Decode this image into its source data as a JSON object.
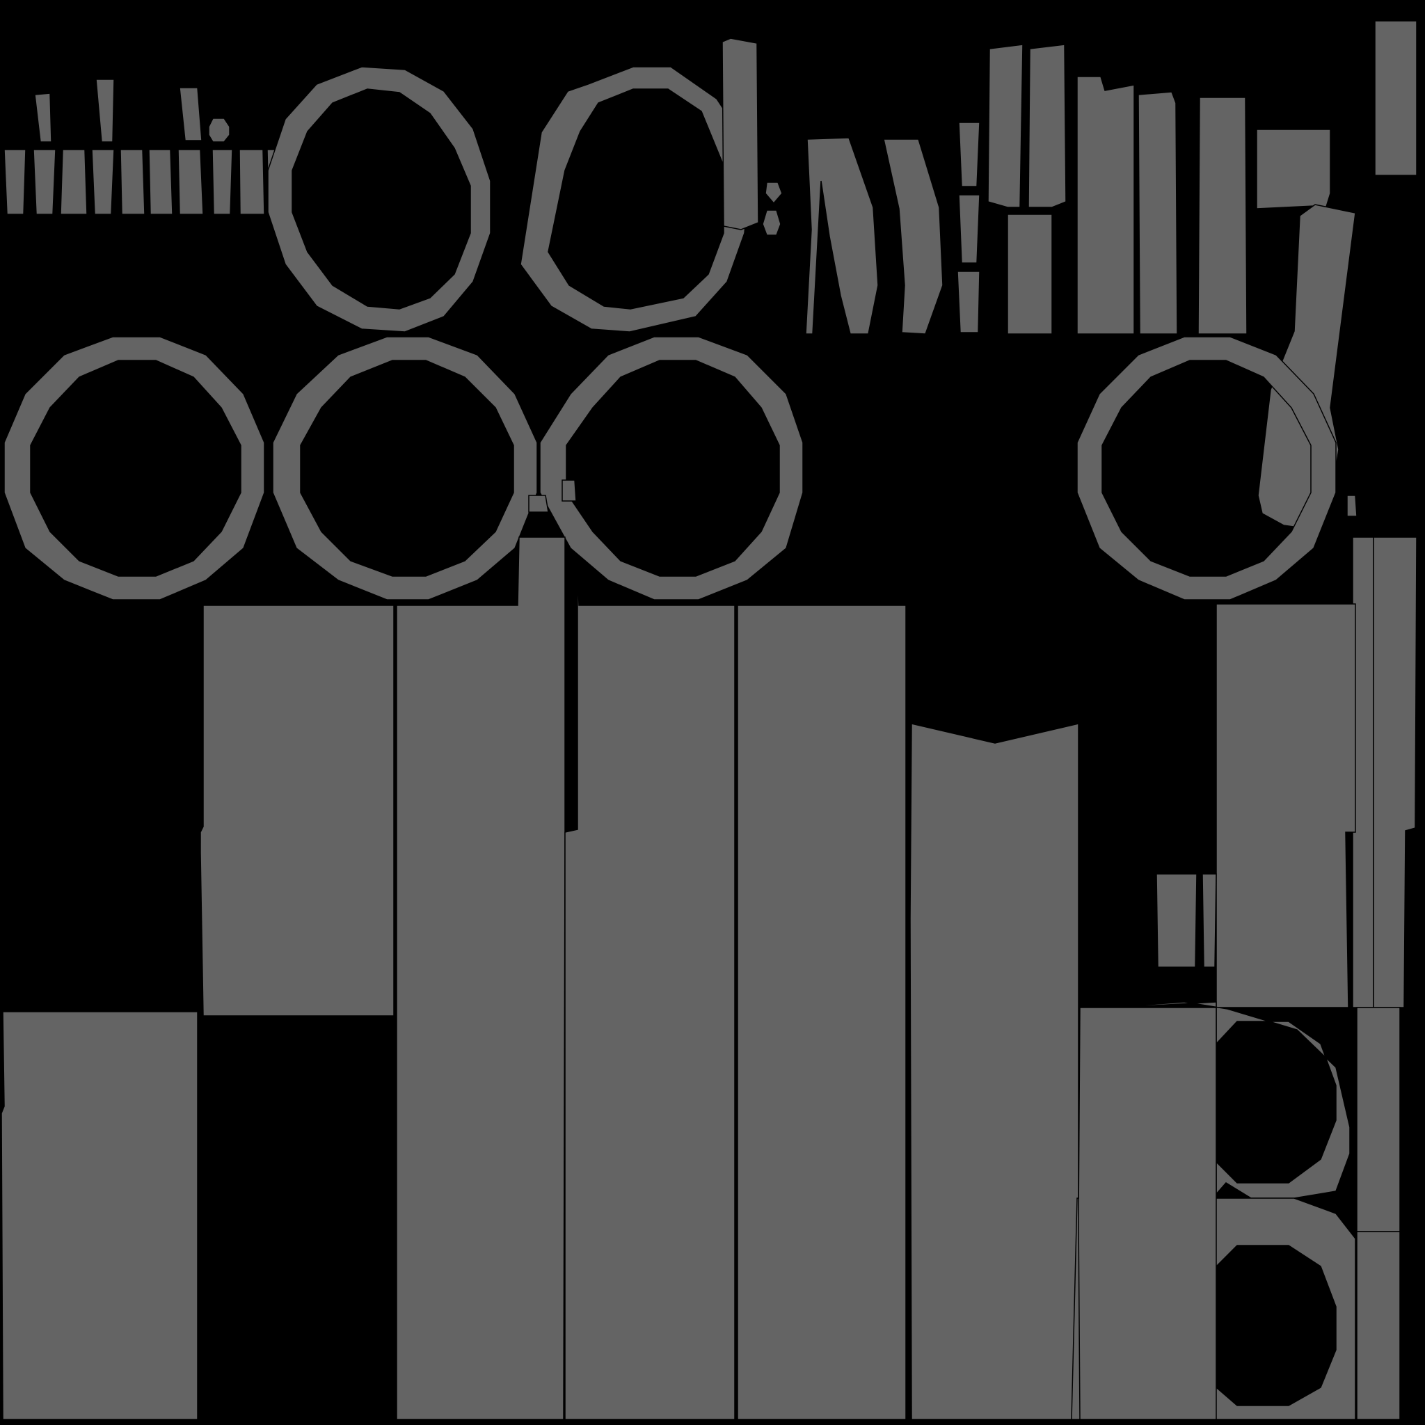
{
  "texture": {
    "background_color": "#000000",
    "island_color": "#646464",
    "seam_color": "#000000"
  }
}
